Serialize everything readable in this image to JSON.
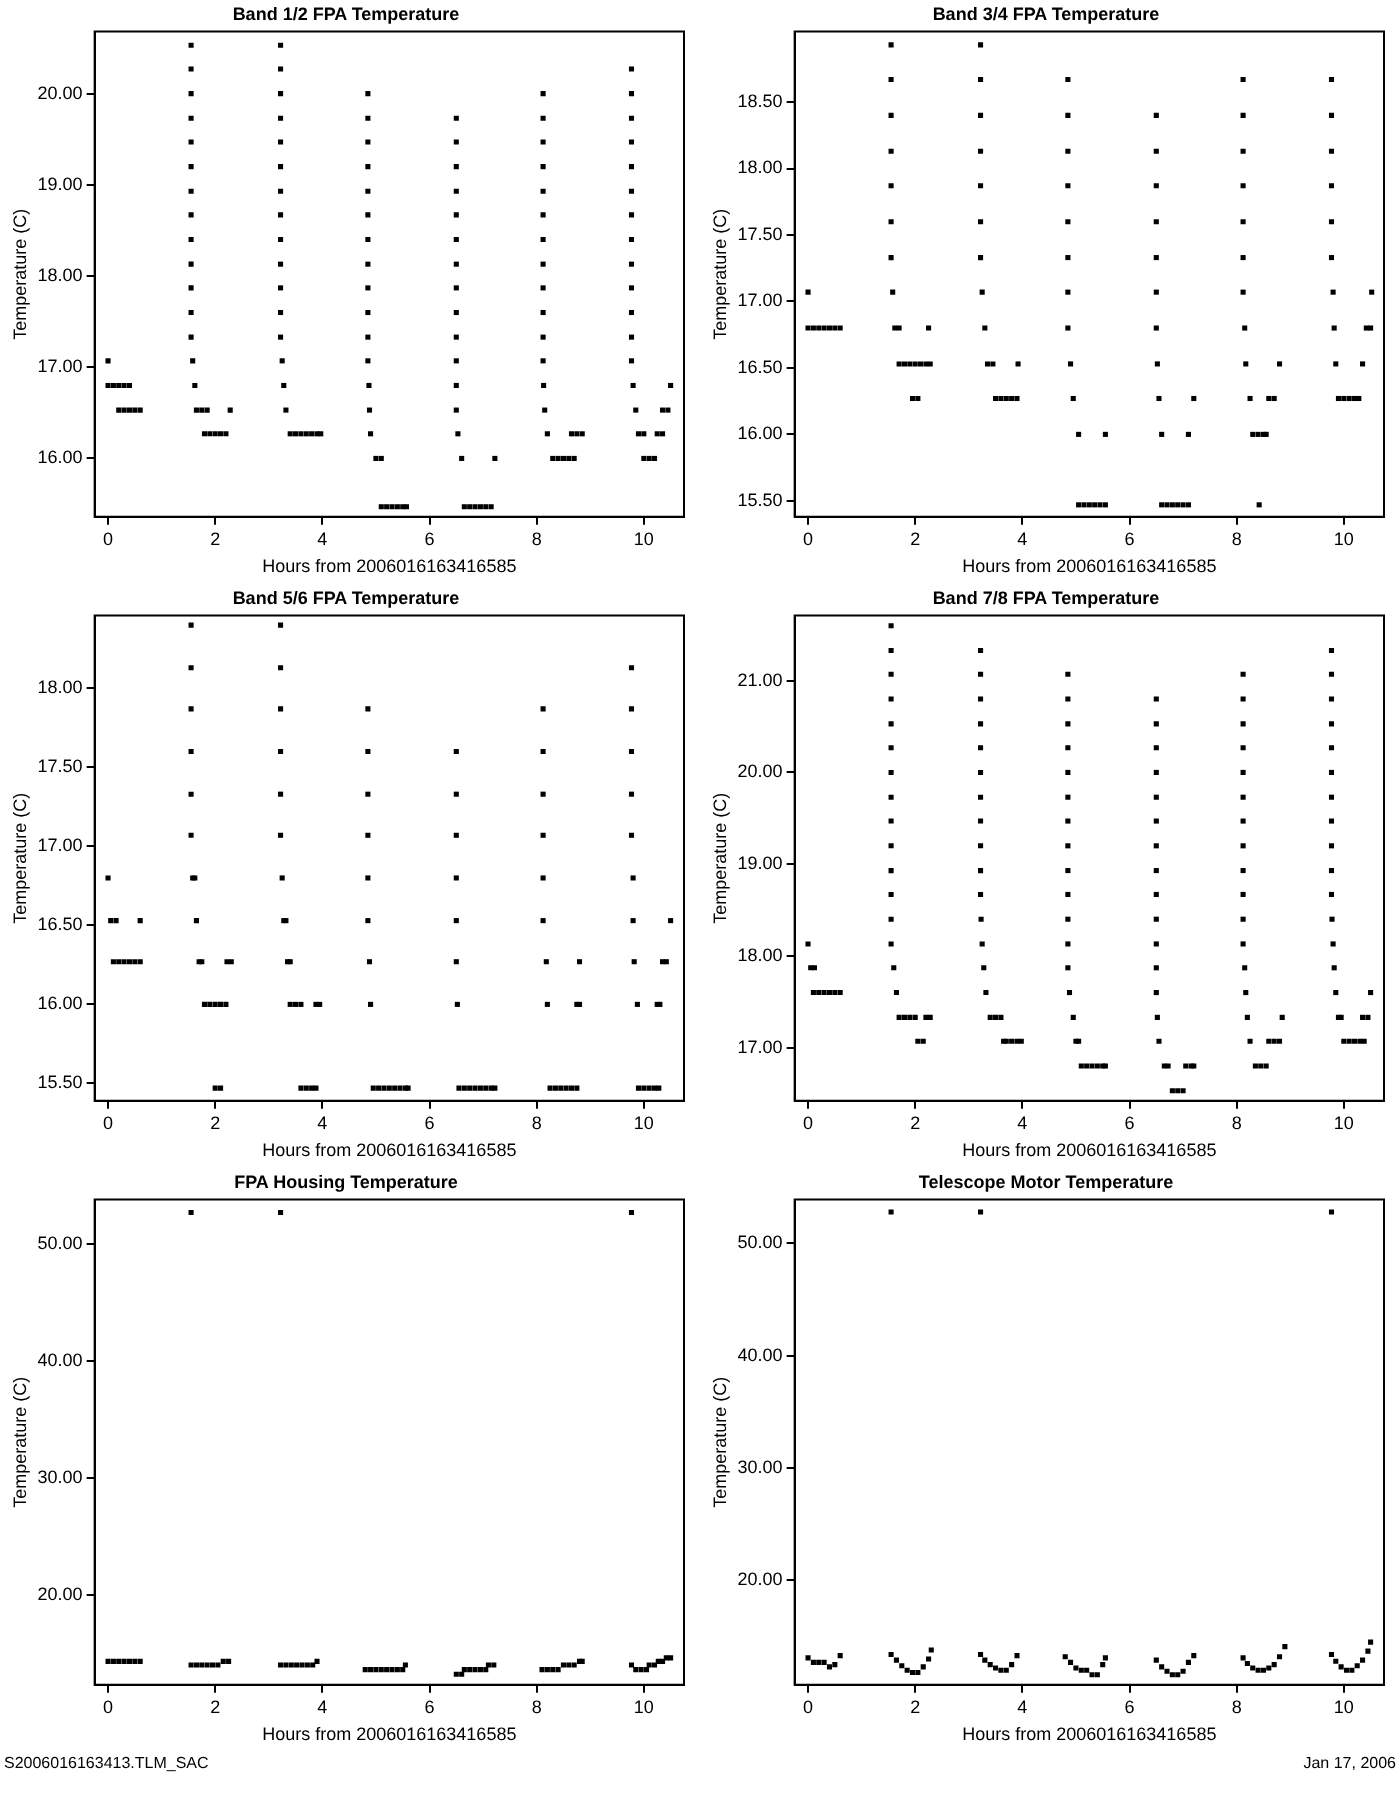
{
  "chart_data": [
    {
      "type": "scatter",
      "title": "Band 1/2 FPA Temperature",
      "xlabel": "Hours from 2006016163416585",
      "ylabel": "Temperature (C)",
      "color": "#000000",
      "marker": "square",
      "grid": false,
      "legend": false,
      "xlim": [
        -0.25,
        10.75
      ],
      "xticks": [
        0,
        2,
        4,
        6,
        8,
        10
      ],
      "ylim": [
        15.36,
        20.68
      ],
      "yticks": [
        {
          "value": 16,
          "label": "16.00"
        },
        {
          "value": 17,
          "label": "17.00"
        },
        {
          "value": 18,
          "label": "18.00"
        },
        {
          "value": 19,
          "label": "19.00"
        },
        {
          "value": 20,
          "label": "20.00"
        }
      ],
      "x": [
        0,
        0,
        0.1,
        0.2,
        0.3,
        0.4,
        0.2,
        0.3,
        0.4,
        0.5,
        0.6,
        1.55,
        1.55,
        1.55,
        1.55,
        1.55,
        1.55,
        1.55,
        1.55,
        1.55,
        1.55,
        1.55,
        1.55,
        1.55,
        1.58,
        1.62,
        1.65,
        1.75,
        1.85,
        1.8,
        1.9,
        2.0,
        2.1,
        2.2,
        2.28,
        3.22,
        3.22,
        3.22,
        3.22,
        3.22,
        3.22,
        3.22,
        3.22,
        3.22,
        3.22,
        3.22,
        3.22,
        3.22,
        3.25,
        3.28,
        3.32,
        3.4,
        3.5,
        3.6,
        3.7,
        3.8,
        3.9,
        3.97,
        4.85,
        4.85,
        4.85,
        4.85,
        4.85,
        4.85,
        4.85,
        4.85,
        4.85,
        4.85,
        4.85,
        4.85,
        4.87,
        4.88,
        4.9,
        5.0,
        5.1,
        5.1,
        5.2,
        5.3,
        5.4,
        5.5,
        5.57,
        6.5,
        6.5,
        6.5,
        6.5,
        6.5,
        6.5,
        6.5,
        6.5,
        6.5,
        6.5,
        6.5,
        6.5,
        6.5,
        6.53,
        6.6,
        6.65,
        6.75,
        6.85,
        6.95,
        7.05,
        7.15,
        7.22,
        8.12,
        8.12,
        8.12,
        8.12,
        8.12,
        8.12,
        8.12,
        8.12,
        8.12,
        8.12,
        8.12,
        8.12,
        8.13,
        8.15,
        8.2,
        8.3,
        8.4,
        8.5,
        8.6,
        8.7,
        8.65,
        8.75,
        8.85,
        9.77,
        9.77,
        9.77,
        9.77,
        9.77,
        9.77,
        9.77,
        9.77,
        9.77,
        9.77,
        9.77,
        9.77,
        9.77,
        9.8,
        9.85,
        9.9,
        10.0,
        10.0,
        10.1,
        10.2,
        10.25,
        10.35,
        10.35,
        10.45,
        10.5
      ],
      "values": [
        17.07,
        16.8,
        16.8,
        16.8,
        16.8,
        16.8,
        16.53,
        16.53,
        16.53,
        16.53,
        16.53,
        20.53,
        20.27,
        20.0,
        19.73,
        19.47,
        19.2,
        18.93,
        18.67,
        18.4,
        18.13,
        17.87,
        17.6,
        17.33,
        17.07,
        16.8,
        16.53,
        16.53,
        16.53,
        16.27,
        16.27,
        16.27,
        16.27,
        16.27,
        16.53,
        20.53,
        20.27,
        20.0,
        19.73,
        19.47,
        19.2,
        18.93,
        18.67,
        18.4,
        18.13,
        17.87,
        17.6,
        17.33,
        17.07,
        16.8,
        16.53,
        16.27,
        16.27,
        16.27,
        16.27,
        16.27,
        16.27,
        16.27,
        20.0,
        19.73,
        19.47,
        19.2,
        18.93,
        18.67,
        18.4,
        18.13,
        17.87,
        17.6,
        17.33,
        17.07,
        16.8,
        16.53,
        16.27,
        16.0,
        16.0,
        15.47,
        15.47,
        15.47,
        15.47,
        15.47,
        15.47,
        19.73,
        19.47,
        19.2,
        18.93,
        18.67,
        18.4,
        18.13,
        17.87,
        17.6,
        17.33,
        17.07,
        16.8,
        16.53,
        16.27,
        16.0,
        15.47,
        15.47,
        15.47,
        15.47,
        15.47,
        15.47,
        16.0,
        20.0,
        19.73,
        19.47,
        19.2,
        18.93,
        18.67,
        18.4,
        18.13,
        17.87,
        17.6,
        17.33,
        17.07,
        16.8,
        16.53,
        16.27,
        16.0,
        16.0,
        16.0,
        16.0,
        16.0,
        16.27,
        16.27,
        16.27,
        20.27,
        20.0,
        19.73,
        19.47,
        19.2,
        18.93,
        18.67,
        18.4,
        18.13,
        17.87,
        17.6,
        17.33,
        17.07,
        16.8,
        16.53,
        16.27,
        16.27,
        16.0,
        16.0,
        16.0,
        16.27,
        16.27,
        16.53,
        16.53,
        16.8
      ]
    },
    {
      "type": "scatter",
      "title": "Band 3/4 FPA Temperature",
      "xlabel": "Hours from 2006016163416585",
      "ylabel": "Temperature (C)",
      "color": "#000000",
      "marker": "square",
      "grid": false,
      "legend": false,
      "xlim": [
        -0.25,
        10.75
      ],
      "xticks": [
        0,
        2,
        4,
        6,
        8,
        10
      ],
      "ylim": [
        15.38,
        19.03
      ],
      "yticks": [
        {
          "value": 15.5,
          "label": "15.50"
        },
        {
          "value": 16,
          "label": "16.00"
        },
        {
          "value": 16.5,
          "label": "16.50"
        },
        {
          "value": 17,
          "label": "17.00"
        },
        {
          "value": 17.5,
          "label": "17.50"
        },
        {
          "value": 18,
          "label": "18.00"
        },
        {
          "value": 18.5,
          "label": "18.50"
        }
      ],
      "x": [
        0,
        0,
        0.1,
        0.2,
        0.3,
        0.4,
        0.5,
        0.6,
        1.55,
        1.55,
        1.55,
        1.55,
        1.55,
        1.55,
        1.55,
        1.58,
        1.62,
        1.7,
        1.7,
        1.8,
        1.9,
        2.0,
        2.1,
        1.95,
        2.05,
        2.2,
        2.28,
        2.25,
        3.22,
        3.22,
        3.22,
        3.22,
        3.22,
        3.22,
        3.22,
        3.25,
        3.3,
        3.35,
        3.45,
        3.92,
        3.5,
        3.6,
        3.7,
        3.8,
        3.9,
        4.85,
        4.85,
        4.85,
        4.85,
        4.85,
        4.85,
        4.85,
        4.85,
        4.9,
        4.95,
        5.05,
        5.55,
        5.05,
        5.15,
        5.25,
        5.35,
        5.45,
        5.55,
        6.5,
        6.5,
        6.5,
        6.5,
        6.5,
        6.5,
        6.5,
        6.52,
        6.55,
        6.6,
        7.1,
        6.6,
        6.7,
        6.8,
        6.9,
        7.0,
        7.1,
        7.2,
        8.12,
        8.12,
        8.12,
        8.12,
        8.12,
        8.12,
        8.12,
        8.15,
        8.17,
        8.25,
        8.6,
        8.7,
        8.3,
        8.4,
        8.5,
        8.55,
        8.42,
        8.8,
        9.77,
        9.77,
        9.77,
        9.77,
        9.77,
        9.77,
        9.8,
        9.82,
        9.85,
        9.9,
        10.0,
        10.1,
        10.2,
        10.28,
        10.35,
        10.42,
        10.5,
        10.52
      ],
      "values": [
        17.07,
        16.8,
        16.8,
        16.8,
        16.8,
        16.8,
        16.8,
        16.8,
        18.93,
        18.67,
        18.4,
        18.13,
        17.87,
        17.6,
        17.33,
        17.07,
        16.8,
        16.8,
        16.53,
        16.53,
        16.53,
        16.53,
        16.53,
        16.27,
        16.27,
        16.53,
        16.53,
        16.8,
        18.93,
        18.67,
        18.4,
        18.13,
        17.87,
        17.6,
        17.33,
        17.07,
        16.8,
        16.53,
        16.53,
        16.53,
        16.27,
        16.27,
        16.27,
        16.27,
        16.27,
        18.67,
        18.4,
        18.13,
        17.87,
        17.6,
        17.33,
        17.07,
        16.8,
        16.53,
        16.27,
        16.0,
        16.0,
        15.47,
        15.47,
        15.47,
        15.47,
        15.47,
        15.47,
        18.4,
        18.13,
        17.87,
        17.6,
        17.33,
        17.07,
        16.8,
        16.53,
        16.27,
        16.0,
        16.0,
        15.47,
        15.47,
        15.47,
        15.47,
        15.47,
        15.47,
        16.27,
        18.67,
        18.4,
        18.13,
        17.87,
        17.6,
        17.33,
        17.07,
        16.8,
        16.53,
        16.27,
        16.27,
        16.27,
        16.0,
        16.0,
        16.0,
        16.0,
        15.47,
        16.53,
        18.67,
        18.4,
        18.13,
        17.87,
        17.6,
        17.33,
        17.07,
        16.8,
        16.53,
        16.27,
        16.27,
        16.27,
        16.27,
        16.27,
        16.53,
        16.8,
        16.8,
        17.07
      ]
    },
    {
      "type": "scatter",
      "title": "Band 5/6 FPA Temperature",
      "xlabel": "Hours from 2006016163416585",
      "ylabel": "Temperature (C)",
      "color": "#000000",
      "marker": "square",
      "grid": false,
      "legend": false,
      "xlim": [
        -0.25,
        10.75
      ],
      "xticks": [
        0,
        2,
        4,
        6,
        8,
        10
      ],
      "ylim": [
        15.39,
        18.46
      ],
      "yticks": [
        {
          "value": 15.5,
          "label": "15.50"
        },
        {
          "value": 16,
          "label": "16.00"
        },
        {
          "value": 16.5,
          "label": "16.50"
        },
        {
          "value": 17,
          "label": "17.00"
        },
        {
          "value": 17.5,
          "label": "17.50"
        },
        {
          "value": 18,
          "label": "18.00"
        }
      ],
      "x": [
        0,
        0.05,
        0.15,
        0.6,
        0.1,
        0.2,
        0.3,
        0.4,
        0.5,
        0.6,
        1.55,
        1.55,
        1.55,
        1.55,
        1.55,
        1.55,
        1.58,
        1.62,
        1.65,
        1.7,
        1.75,
        2.22,
        2.3,
        1.8,
        1.9,
        2.0,
        2.1,
        2.2,
        2.0,
        2.1,
        3.22,
        3.22,
        3.22,
        3.22,
        3.22,
        3.22,
        3.25,
        3.28,
        3.32,
        3.35,
        3.4,
        3.4,
        3.5,
        3.6,
        3.88,
        3.95,
        3.6,
        3.7,
        3.8,
        3.88,
        4.85,
        4.85,
        4.85,
        4.85,
        4.85,
        4.85,
        4.88,
        4.9,
        4.95,
        5.05,
        5.15,
        5.25,
        5.35,
        5.45,
        5.55,
        5.6,
        6.5,
        6.5,
        6.5,
        6.5,
        6.5,
        6.5,
        6.52,
        6.55,
        6.65,
        6.75,
        6.85,
        6.95,
        7.05,
        7.15,
        7.22,
        8.12,
        8.12,
        8.12,
        8.12,
        8.12,
        8.12,
        8.18,
        8.2,
        8.25,
        8.35,
        8.45,
        8.55,
        8.65,
        8.75,
        8.75,
        8.8,
        8.8,
        9.77,
        9.77,
        9.77,
        9.77,
        9.77,
        9.8,
        9.8,
        9.82,
        9.88,
        9.9,
        10.0,
        10.1,
        10.2,
        10.28,
        10.25,
        10.3,
        10.35,
        10.42,
        10.5
      ],
      "values": [
        16.8,
        16.53,
        16.53,
        16.53,
        16.27,
        16.27,
        16.27,
        16.27,
        16.27,
        16.27,
        18.4,
        18.13,
        17.87,
        17.6,
        17.33,
        17.07,
        16.8,
        16.8,
        16.53,
        16.27,
        16.27,
        16.27,
        16.27,
        16.0,
        16.0,
        16.0,
        16.0,
        16.0,
        15.47,
        15.47,
        18.4,
        18.13,
        17.87,
        17.6,
        17.33,
        17.07,
        16.8,
        16.53,
        16.53,
        16.27,
        16.27,
        16.0,
        16.0,
        16.0,
        16.0,
        16.0,
        15.47,
        15.47,
        15.47,
        15.47,
        17.87,
        17.6,
        17.33,
        17.07,
        16.8,
        16.53,
        16.27,
        16.0,
        15.47,
        15.47,
        15.47,
        15.47,
        15.47,
        15.47,
        15.47,
        15.47,
        17.6,
        17.33,
        17.07,
        16.8,
        16.53,
        16.27,
        16.0,
        15.47,
        15.47,
        15.47,
        15.47,
        15.47,
        15.47,
        15.47,
        15.47,
        17.87,
        17.6,
        17.33,
        17.07,
        16.8,
        16.53,
        16.27,
        16.0,
        15.47,
        15.47,
        15.47,
        15.47,
        15.47,
        15.47,
        16.0,
        16.0,
        16.27,
        18.13,
        17.87,
        17.6,
        17.33,
        17.07,
        16.8,
        16.53,
        16.27,
        16.0,
        15.47,
        15.47,
        15.47,
        15.47,
        15.47,
        16.0,
        16.0,
        16.27,
        16.27,
        16.53
      ]
    },
    {
      "type": "scatter",
      "title": "Band 7/8 FPA Temperature",
      "xlabel": "Hours from 2006016163416585",
      "ylabel": "Temperature (C)",
      "color": "#000000",
      "marker": "square",
      "grid": false,
      "legend": false,
      "xlim": [
        -0.25,
        10.75
      ],
      "xticks": [
        0,
        2,
        4,
        6,
        8,
        10
      ],
      "ylim": [
        16.42,
        21.71
      ],
      "yticks": [
        {
          "value": 17,
          "label": "17.00"
        },
        {
          "value": 18,
          "label": "18.00"
        },
        {
          "value": 19,
          "label": "19.00"
        },
        {
          "value": 20,
          "label": "20.00"
        },
        {
          "value": 21,
          "label": "21.00"
        }
      ],
      "x": [
        0,
        0.05,
        0.12,
        0.1,
        0.2,
        0.3,
        0.4,
        0.5,
        0.6,
        1.55,
        1.55,
        1.55,
        1.55,
        1.55,
        1.55,
        1.55,
        1.55,
        1.55,
        1.55,
        1.55,
        1.55,
        1.55,
        1.55,
        1.6,
        1.65,
        1.7,
        1.8,
        1.9,
        2.0,
        2.05,
        2.15,
        2.2,
        2.28,
        3.22,
        3.22,
        3.22,
        3.22,
        3.22,
        3.22,
        3.22,
        3.22,
        3.22,
        3.22,
        3.22,
        3.23,
        3.25,
        3.28,
        3.32,
        3.4,
        3.5,
        3.6,
        3.65,
        3.7,
        3.8,
        3.9,
        3.98,
        4.85,
        4.85,
        4.85,
        4.85,
        4.85,
        4.85,
        4.85,
        4.85,
        4.85,
        4.85,
        4.85,
        4.85,
        4.85,
        4.88,
        4.95,
        5.0,
        5.05,
        5.1,
        5.2,
        5.3,
        5.4,
        5.5,
        5.55,
        6.5,
        6.5,
        6.5,
        6.5,
        6.5,
        6.5,
        6.5,
        6.5,
        6.5,
        6.5,
        6.5,
        6.5,
        6.5,
        6.52,
        6.55,
        6.65,
        6.72,
        6.8,
        6.9,
        7.0,
        7.05,
        7.15,
        7.2,
        8.12,
        8.12,
        8.12,
        8.12,
        8.12,
        8.12,
        8.12,
        8.12,
        8.12,
        8.12,
        8.12,
        8.12,
        8.15,
        8.17,
        8.2,
        8.25,
        8.35,
        8.45,
        8.55,
        8.6,
        8.7,
        8.8,
        8.85,
        9.77,
        9.77,
        9.77,
        9.77,
        9.77,
        9.77,
        9.77,
        9.77,
        9.77,
        9.77,
        9.77,
        9.78,
        9.8,
        9.82,
        9.85,
        9.9,
        9.95,
        10.0,
        10.1,
        10.2,
        10.3,
        10.38,
        10.35,
        10.45,
        10.5
      ],
      "values": [
        18.13,
        17.87,
        17.87,
        17.6,
        17.6,
        17.6,
        17.6,
        17.6,
        17.6,
        21.6,
        21.33,
        21.07,
        20.8,
        20.53,
        20.27,
        20.0,
        19.73,
        19.47,
        19.2,
        18.93,
        18.67,
        18.4,
        18.13,
        17.87,
        17.6,
        17.33,
        17.33,
        17.33,
        17.33,
        17.07,
        17.07,
        17.33,
        17.33,
        21.33,
        21.07,
        20.8,
        20.53,
        20.27,
        20.0,
        19.73,
        19.47,
        19.2,
        18.93,
        18.67,
        18.4,
        18.13,
        17.87,
        17.6,
        17.33,
        17.33,
        17.33,
        17.07,
        17.07,
        17.07,
        17.07,
        17.07,
        21.07,
        20.8,
        20.53,
        20.27,
        20.0,
        19.73,
        19.47,
        19.2,
        18.93,
        18.67,
        18.4,
        18.13,
        17.87,
        17.6,
        17.33,
        17.07,
        17.07,
        16.8,
        16.8,
        16.8,
        16.8,
        16.8,
        16.8,
        20.8,
        20.53,
        20.27,
        20.0,
        19.73,
        19.47,
        19.2,
        18.93,
        18.67,
        18.4,
        18.13,
        17.87,
        17.6,
        17.33,
        17.07,
        16.8,
        16.8,
        16.53,
        16.53,
        16.53,
        16.8,
        16.8,
        16.8,
        21.07,
        20.8,
        20.53,
        20.27,
        20.0,
        19.73,
        19.47,
        19.2,
        18.93,
        18.67,
        18.4,
        18.13,
        17.87,
        17.6,
        17.33,
        17.07,
        16.8,
        16.8,
        16.8,
        17.07,
        17.07,
        17.07,
        17.33,
        21.33,
        21.07,
        20.8,
        20.53,
        20.27,
        20.0,
        19.73,
        19.47,
        19.2,
        18.93,
        18.67,
        18.4,
        18.13,
        17.87,
        17.6,
        17.33,
        17.33,
        17.07,
        17.07,
        17.07,
        17.07,
        17.07,
        17.33,
        17.33,
        17.6
      ]
    },
    {
      "type": "scatter",
      "title": "FPA Housing Temperature",
      "xlabel": "Hours from 2006016163416585",
      "ylabel": "Temperature (C)",
      "color": "#000000",
      "marker": "square",
      "grid": false,
      "legend": false,
      "annotations": [
        "S2006016163413.TLM_SAC"
      ],
      "xlim": [
        -0.25,
        10.75
      ],
      "xticks": [
        0,
        2,
        4,
        6,
        8,
        10
      ],
      "ylim": [
        12.3,
        53.8
      ],
      "yticks": [
        {
          "value": 20,
          "label": "20.00"
        },
        {
          "value": 30,
          "label": "30.00"
        },
        {
          "value": 40,
          "label": "40.00"
        },
        {
          "value": 50,
          "label": "50.00"
        }
      ],
      "x": [
        1.55,
        3.22,
        9.77,
        0,
        0.1,
        0.2,
        0.3,
        0.4,
        0.5,
        0.6,
        1.55,
        1.65,
        1.75,
        1.85,
        1.95,
        2.05,
        2.15,
        2.25,
        3.22,
        3.32,
        3.42,
        3.52,
        3.62,
        3.72,
        3.82,
        3.9,
        4.8,
        4.9,
        5.0,
        5.1,
        5.2,
        5.3,
        5.4,
        5.5,
        5.55,
        6.5,
        6.6,
        6.65,
        6.75,
        6.85,
        6.95,
        7.05,
        7.1,
        7.2,
        8.1,
        8.2,
        8.3,
        8.4,
        8.5,
        8.6,
        8.7,
        8.8,
        8.85,
        9.77,
        9.85,
        9.95,
        10.05,
        10.1,
        10.2,
        10.27,
        10.35,
        10.42,
        10.5
      ],
      "values": [
        52.7,
        52.7,
        52.7,
        14.3,
        14.3,
        14.3,
        14.3,
        14.3,
        14.3,
        14.3,
        14.0,
        14.0,
        14.0,
        14.0,
        14.0,
        14.0,
        14.3,
        14.3,
        14.0,
        14.0,
        14.0,
        14.0,
        14.0,
        14.0,
        14.0,
        14.3,
        13.6,
        13.6,
        13.6,
        13.6,
        13.6,
        13.6,
        13.6,
        13.6,
        14.0,
        13.2,
        13.2,
        13.6,
        13.6,
        13.6,
        13.6,
        13.6,
        14.0,
        14.0,
        13.6,
        13.6,
        13.6,
        13.6,
        14.0,
        14.0,
        14.0,
        14.3,
        14.3,
        14.0,
        13.6,
        13.6,
        13.6,
        14.0,
        14.0,
        14.3,
        14.3,
        14.6,
        14.6
      ]
    },
    {
      "type": "scatter",
      "title": "Telescope Motor Temperature",
      "xlabel": "Hours from 2006016163416585",
      "ylabel": "Temperature (C)",
      "color": "#000000",
      "marker": "square",
      "grid": false,
      "legend": false,
      "annotations": [
        "Jan 17, 2006"
      ],
      "xlim": [
        -0.25,
        10.75
      ],
      "xticks": [
        0,
        2,
        4,
        6,
        8,
        10
      ],
      "ylim": [
        10.7,
        53.9
      ],
      "yticks": [
        {
          "value": 20,
          "label": "20.00"
        },
        {
          "value": 30,
          "label": "30.00"
        },
        {
          "value": 40,
          "label": "40.00"
        },
        {
          "value": 50,
          "label": "50.00"
        }
      ],
      "x": [
        1.55,
        3.22,
        9.77,
        0,
        0.1,
        0.2,
        0.3,
        0.4,
        0.5,
        0.6,
        1.55,
        1.65,
        1.75,
        1.85,
        1.95,
        2.05,
        2.15,
        2.25,
        2.3,
        3.22,
        3.3,
        3.4,
        3.5,
        3.6,
        3.7,
        3.8,
        3.9,
        4.8,
        4.9,
        5.0,
        5.1,
        5.2,
        5.3,
        5.4,
        5.5,
        5.55,
        6.5,
        6.6,
        6.7,
        6.8,
        6.9,
        7.0,
        7.1,
        7.2,
        8.12,
        8.2,
        8.3,
        8.4,
        8.5,
        8.6,
        8.7,
        8.8,
        8.9,
        9.77,
        9.85,
        9.95,
        10.05,
        10.15,
        10.25,
        10.35,
        10.45,
        10.5
      ],
      "values": [
        52.8,
        52.8,
        52.8,
        13.1,
        12.7,
        12.7,
        12.7,
        12.3,
        12.5,
        13.3,
        13.4,
        12.9,
        12.4,
        12.0,
        11.8,
        11.8,
        12.3,
        13.0,
        13.8,
        13.4,
        12.9,
        12.5,
        12.2,
        12.0,
        12.0,
        12.5,
        13.3,
        13.2,
        12.7,
        12.2,
        12.0,
        12.0,
        11.6,
        11.6,
        12.5,
        13.1,
        12.9,
        12.3,
        11.9,
        11.6,
        11.6,
        11.9,
        12.7,
        13.3,
        13.1,
        12.6,
        12.2,
        12.0,
        12.0,
        12.2,
        12.5,
        13.2,
        14.1,
        13.4,
        12.8,
        12.3,
        12.0,
        12.0,
        12.4,
        12.9,
        13.7,
        14.5
      ]
    }
  ]
}
